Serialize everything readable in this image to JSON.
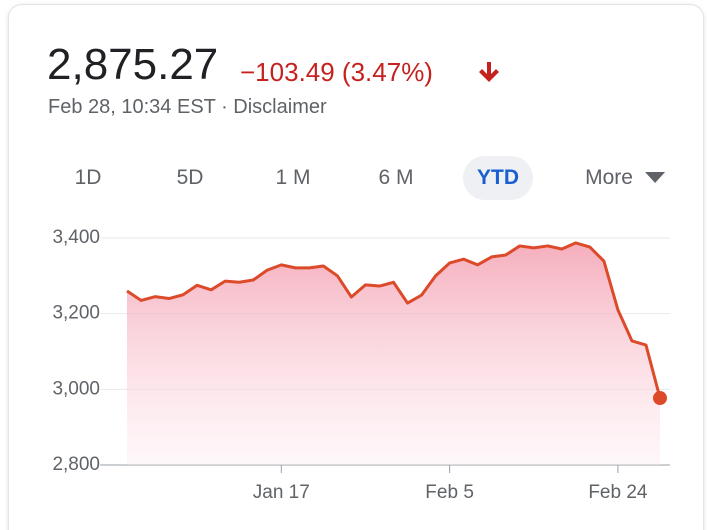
{
  "header": {
    "price": "2,875.27",
    "change": "−103.49 (3.47%)",
    "timestamp": "Feb 28, 10:34 EST · Disclaimer"
  },
  "ranges": [
    "1D",
    "5D",
    "1 M",
    "6 M",
    "YTD",
    "More"
  ],
  "selected_range": 4,
  "chart_data": {
    "type": "area",
    "categories": [
      null,
      null,
      null,
      null,
      null,
      null,
      null,
      null,
      null,
      null,
      null,
      "Jan 17",
      null,
      null,
      null,
      null,
      null,
      null,
      null,
      null,
      null,
      null,
      null,
      "Feb 5",
      null,
      null,
      null,
      null,
      null,
      null,
      null,
      null,
      null,
      null,
      null,
      "Feb 24",
      null,
      null,
      null
    ],
    "values": [
      3260,
      3235,
      3245,
      3240,
      3250,
      3275,
      3263,
      3286,
      3283,
      3289,
      3315,
      3329,
      3321,
      3321,
      3326,
      3300,
      3244,
      3276,
      3273,
      3283,
      3228,
      3249,
      3300,
      3334,
      3344,
      3329,
      3350,
      3355,
      3379,
      3374,
      3379,
      3371,
      3387,
      3376,
      3339,
      3210,
      3128,
      3117,
      2977
    ],
    "color": "#dc4a2a",
    "ylim": [
      2800,
      3400
    ],
    "yticks": [
      {
        "value": 2800,
        "label": "2,800"
      },
      {
        "value": 3000,
        "label": "3,000"
      },
      {
        "value": 3200,
        "label": "3,200"
      },
      {
        "value": 3400,
        "label": "3,400"
      }
    ],
    "grid": true
  }
}
